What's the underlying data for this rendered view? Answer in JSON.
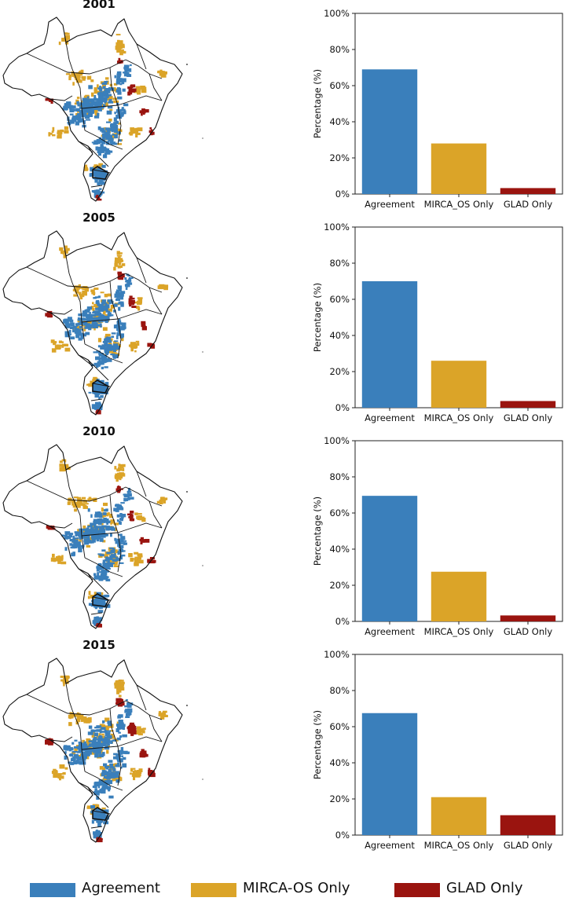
{
  "colors": {
    "agreement": "#3a7fbb",
    "mirca": "#dba428",
    "glad": "#9a140f"
  },
  "legend": {
    "agreement": "Agreement",
    "mirca": "MIRCA-OS Only",
    "glad": "GLAD Only"
  },
  "chart_data": [
    {
      "type": "bar",
      "title": "2001",
      "categories": [
        "Agreement",
        "MIRCA_OS Only",
        "GLAD Only"
      ],
      "values": [
        69,
        28,
        3.3
      ],
      "ylabel": "Percentage (%)",
      "ylim": [
        0,
        100
      ],
      "yticks": [
        "0%",
        "20%",
        "40%",
        "60%",
        "80%",
        "100%"
      ]
    },
    {
      "type": "bar",
      "title": "2005",
      "categories": [
        "Agreement",
        "MIRCA_OS Only",
        "GLAD Only"
      ],
      "values": [
        70,
        26,
        3.7
      ],
      "ylabel": "Percentage (%)",
      "ylim": [
        0,
        100
      ],
      "yticks": [
        "0%",
        "20%",
        "40%",
        "60%",
        "80%",
        "100%"
      ]
    },
    {
      "type": "bar",
      "title": "2010",
      "categories": [
        "Agreement",
        "MIRCA_OS Only",
        "GLAD Only"
      ],
      "values": [
        69.5,
        27.5,
        3.3
      ],
      "ylabel": "Percentage (%)",
      "ylim": [
        0,
        100
      ],
      "yticks": [
        "0%",
        "20%",
        "40%",
        "60%",
        "80%",
        "100%"
      ]
    },
    {
      "type": "bar",
      "title": "2015",
      "categories": [
        "Agreement",
        "MIRCA_OS Only",
        "GLAD Only"
      ],
      "values": [
        67.5,
        21,
        11
      ],
      "ylabel": "Percentage (%)",
      "ylim": [
        0,
        100
      ],
      "yticks": [
        "0%",
        "20%",
        "40%",
        "60%",
        "80%",
        "100%"
      ]
    }
  ]
}
